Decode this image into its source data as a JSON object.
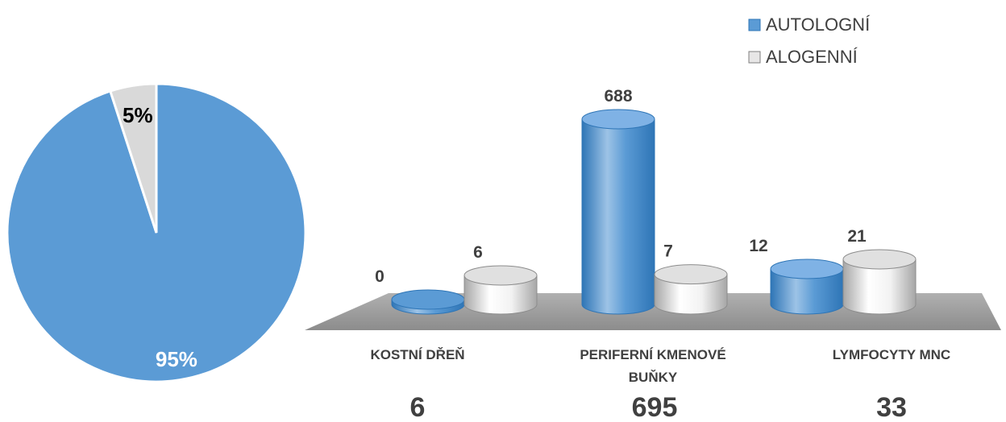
{
  "chart_data": [
    {
      "type": "pie",
      "slices": [
        {
          "label": "95%",
          "value": 95,
          "color": "#5B9BD5",
          "label_color": "#ffffff"
        },
        {
          "label": "5%",
          "value": 5,
          "color": "#D9D9D9",
          "label_color": "#000000"
        }
      ]
    },
    {
      "type": "bar",
      "style": "3d-cylinder",
      "categories": [
        "KOSTNÍ DŘEŇ",
        "PERIFERNÍ KMENOVÉ BUŇKY",
        "LYMFOCYTY MNC"
      ],
      "category_lines": [
        [
          "KOSTNÍ DŘEŇ"
        ],
        [
          "PERIFERNÍ KMENOVÉ",
          "BUŇKY"
        ],
        [
          "LYMFOCYTY MNC"
        ]
      ],
      "series": [
        {
          "name": "AUTOLOGNÍ",
          "values": [
            0,
            688,
            12
          ],
          "color": "#5B9BD5"
        },
        {
          "name": "ALOGENNÍ",
          "values": [
            6,
            7,
            21
          ],
          "color": "#D9D9D9"
        }
      ],
      "totals": [
        "6",
        "695",
        "33"
      ],
      "ylim": [
        0,
        688
      ],
      "legend": "top-right",
      "grid": false
    }
  ]
}
